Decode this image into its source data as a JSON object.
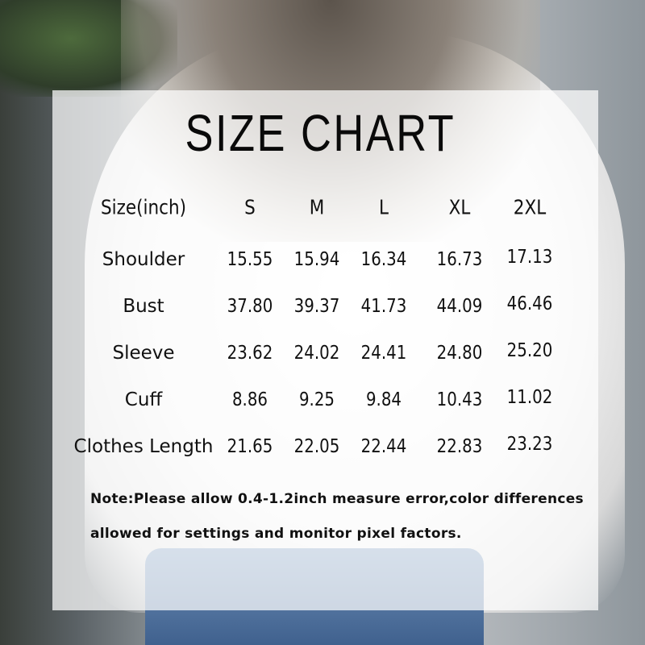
{
  "title": "SIZE CHART",
  "table": {
    "headers": [
      "Size(inch)",
      "S",
      "M",
      "L",
      "XL",
      "2XL"
    ],
    "rows": [
      {
        "label": "Shoulder",
        "values": [
          "15.55",
          "15.94",
          "16.34",
          "16.73",
          "17.13"
        ]
      },
      {
        "label": "Bust",
        "values": [
          "37.80",
          "39.37",
          "41.73",
          "44.09",
          "46.46"
        ]
      },
      {
        "label": "Sleeve",
        "values": [
          "23.62",
          "24.02",
          "24.41",
          "24.80",
          "25.20"
        ]
      },
      {
        "label": "Cuff",
        "values": [
          "8.86",
          "9.25",
          "9.84",
          "10.43",
          "11.02"
        ]
      },
      {
        "label": "Clothes Length",
        "values": [
          "21.65",
          "22.05",
          "22.44",
          "22.83",
          "23.23"
        ]
      }
    ]
  },
  "note": {
    "line1": "Note:Please allow 0.4-1.2inch measure error,color differences",
    "line2": "allowed for settings and monitor pixel factors."
  }
}
